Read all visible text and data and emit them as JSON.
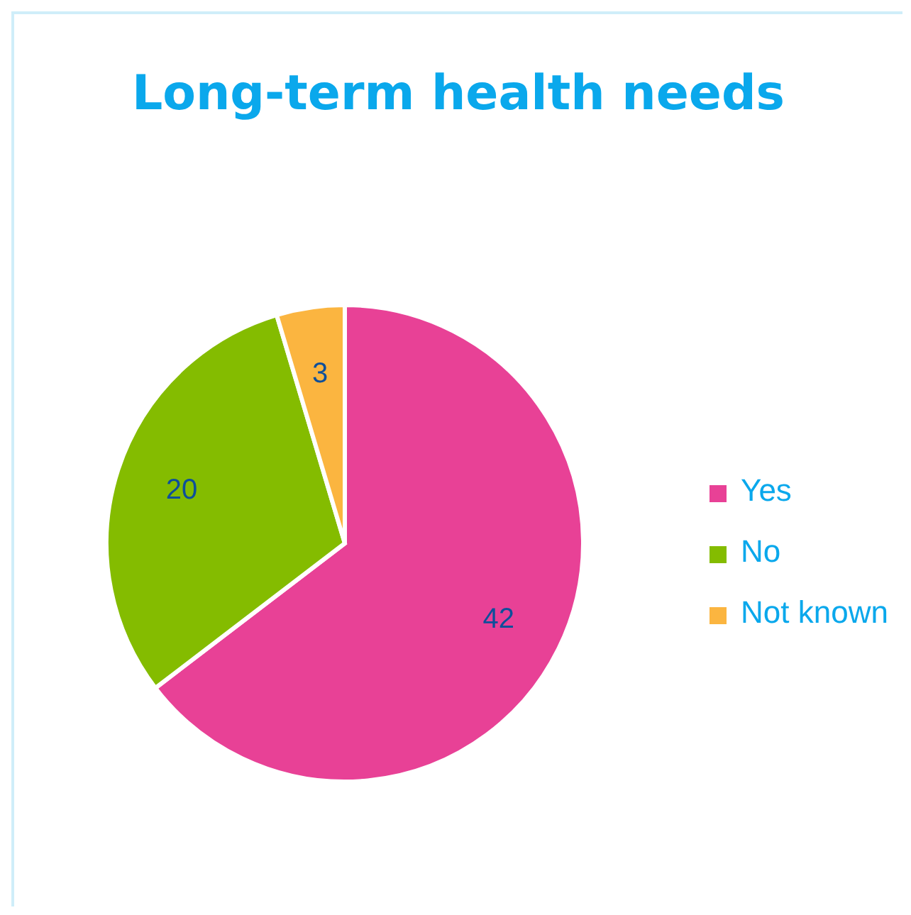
{
  "chart_data": {
    "type": "pie",
    "title": "Long-term health needs",
    "categories": [
      "Yes",
      "No",
      "Not known"
    ],
    "values": [
      42,
      20,
      3
    ],
    "colors": [
      "#e84196",
      "#84bc00",
      "#fbb540"
    ],
    "data_labels": true,
    "legend": "right"
  }
}
